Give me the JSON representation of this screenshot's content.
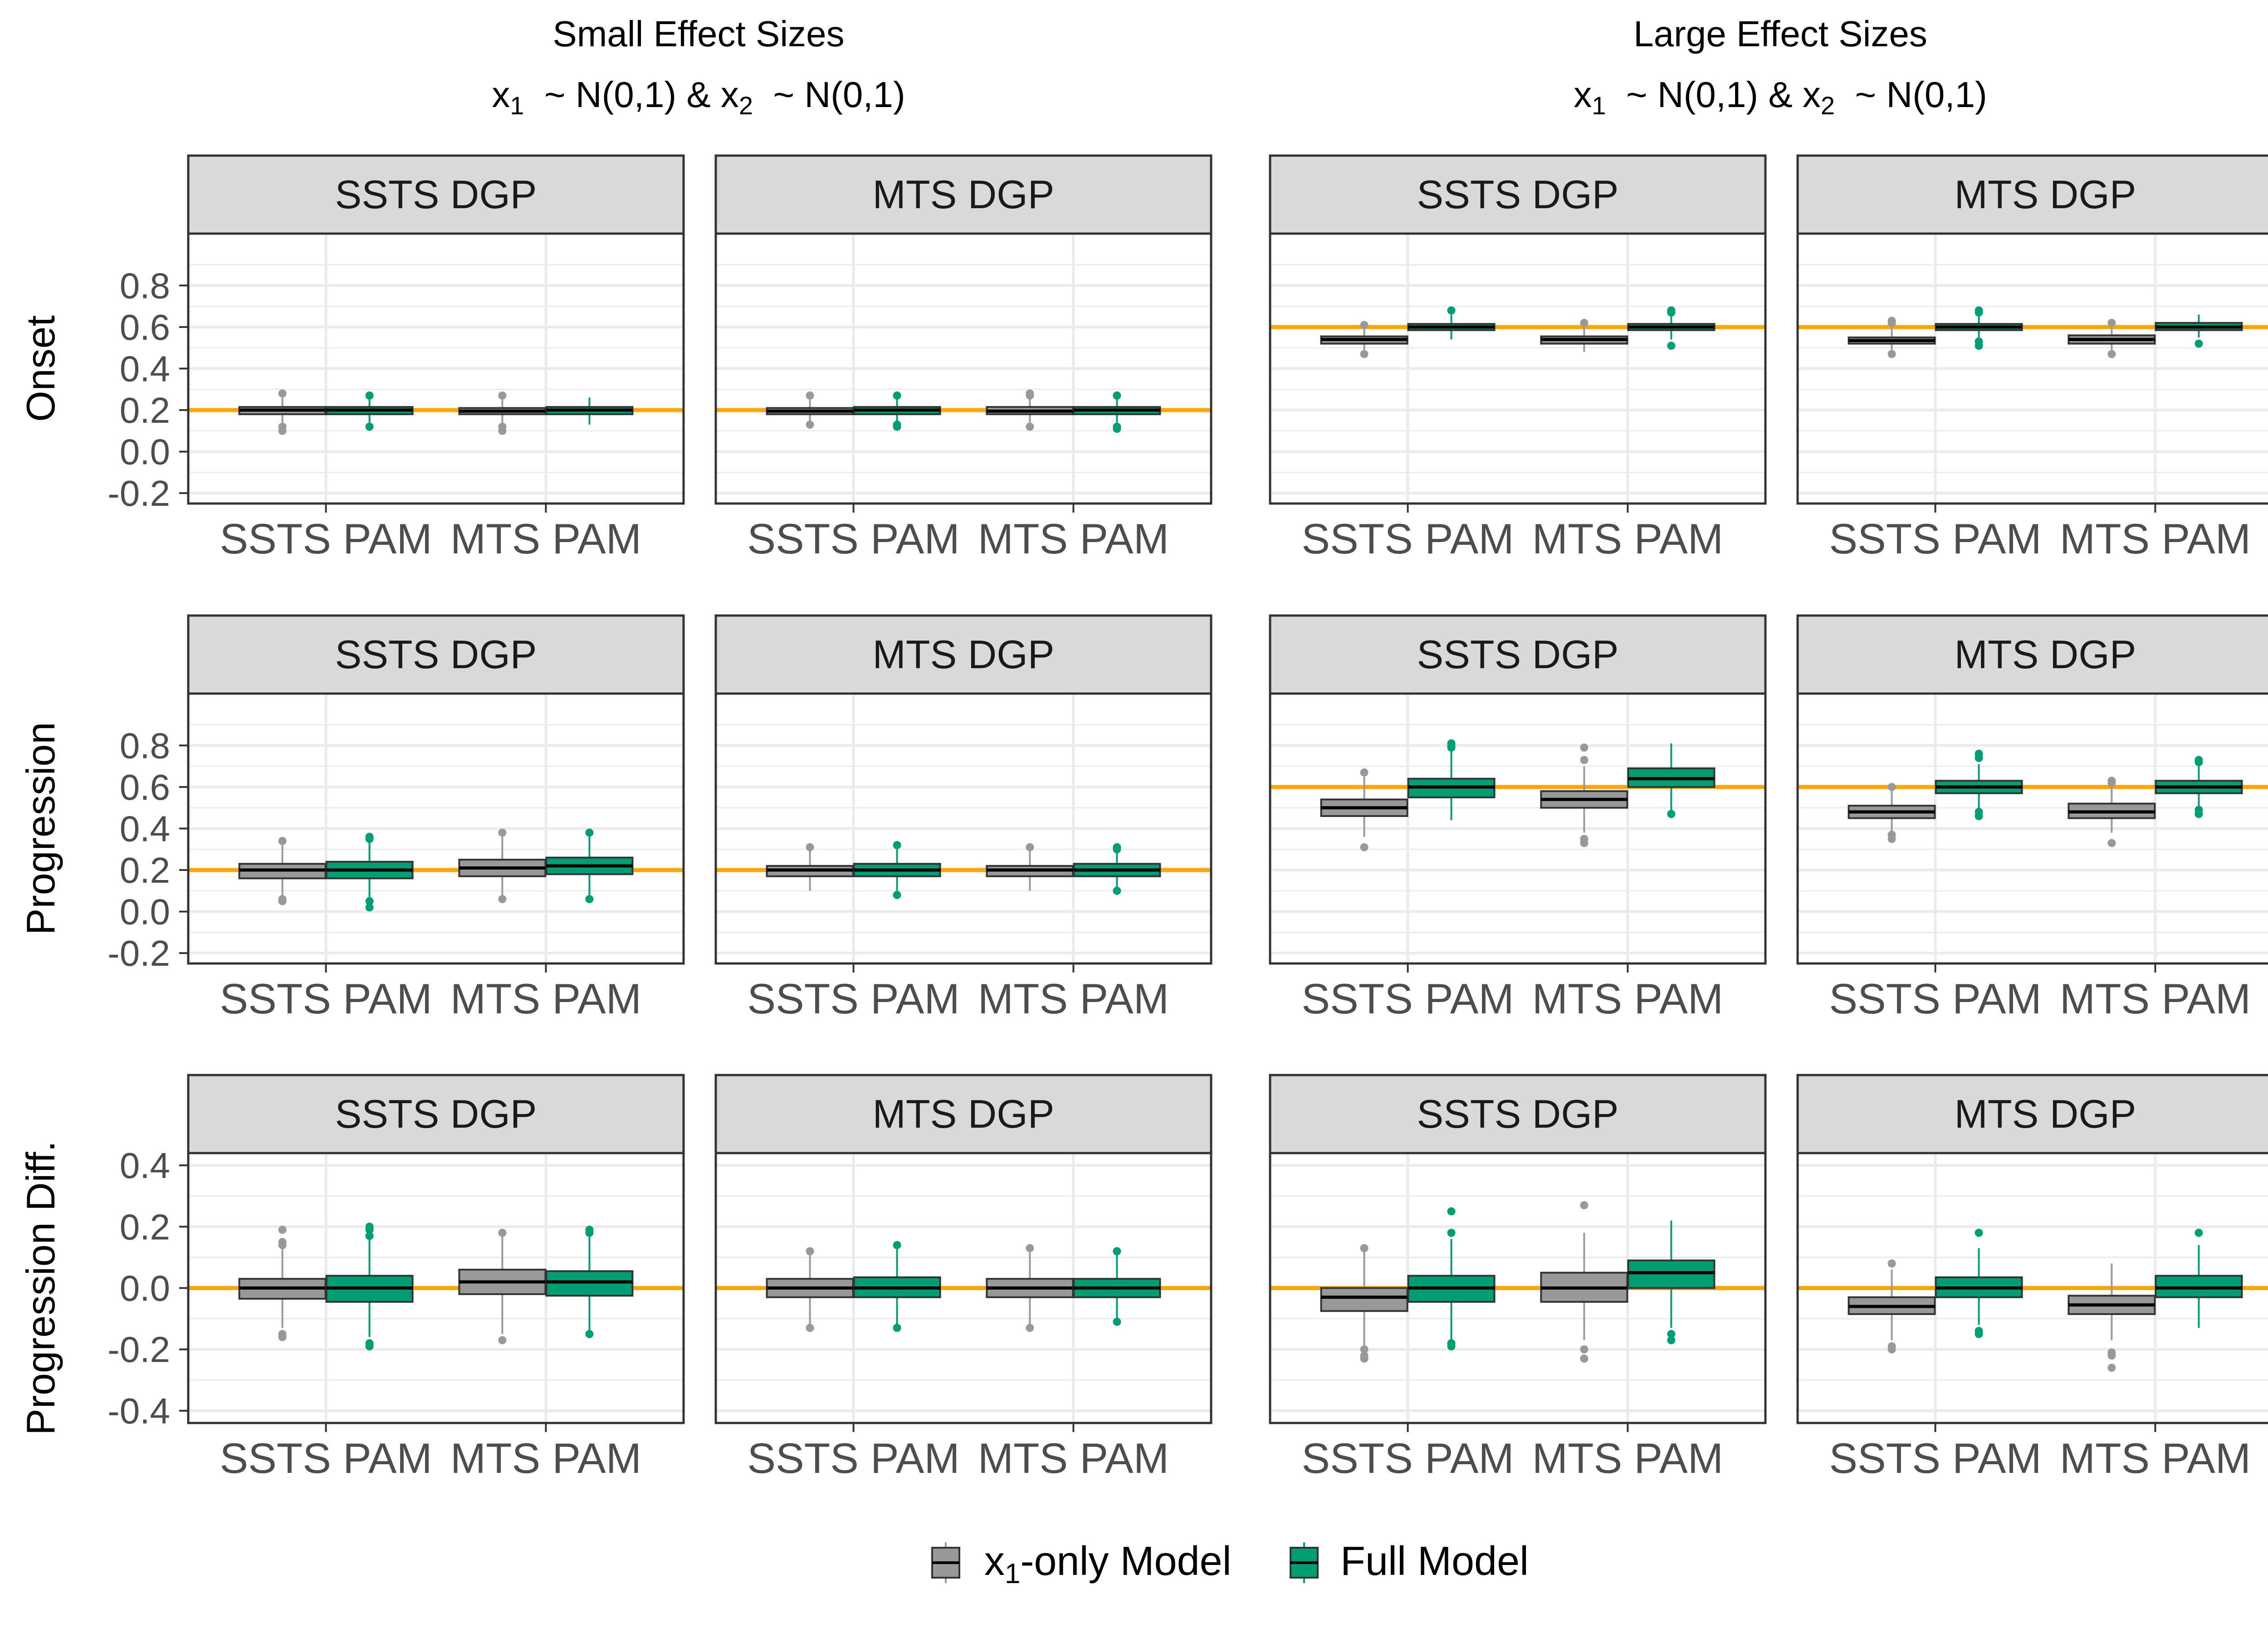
{
  "figure": {
    "col_titles": [
      {
        "line1": "Small Effect Sizes",
        "line2": {
          "v1": "x",
          "s1": "1",
          "t1": "  ~ N(0,1) & ",
          "v2": "x",
          "s2": "2",
          "t2": "  ~ N(0,1)"
        }
      },
      {
        "line1": "Large Effect Sizes",
        "line2": {
          "v1": "x",
          "s1": "1",
          "t1": "  ~ N(0,1) & ",
          "v2": "x",
          "s2": "2",
          "t2": "  ~ N(0,1)"
        }
      }
    ],
    "legend": {
      "items": [
        {
          "pre": "x",
          "sub": "1",
          "post": "-only Model",
          "color": "#999999"
        },
        {
          "pre": "Full Model",
          "sub": "",
          "post": "",
          "color": "#009E73"
        }
      ]
    },
    "colors": {
      "reference_line": "#FFA500",
      "strip_bg": "#D9D9D9",
      "grid": "#EBEBEB",
      "frame": "#333333",
      "median": "#000000",
      "text": "#4D4D4D",
      "title": "#000000"
    }
  },
  "chart_data": {
    "type": "box",
    "categories": [
      "SSTS PAM",
      "MTS PAM"
    ],
    "series_names": [
      "x1-only Model",
      "Full Model"
    ],
    "rows": [
      {
        "ylabel": "Onset",
        "ylim": [
          -0.25,
          1.05
        ],
        "ticks": [
          -0.2,
          0.0,
          0.2,
          0.4,
          0.6,
          0.8
        ],
        "tick_labels": [
          "-0.2",
          "0.0",
          "0.2",
          "0.4",
          "0.6",
          "0.8"
        ],
        "panels": [
          {
            "strip": "SSTS DGP",
            "ref": 0.2,
            "boxes": [
              {
                "q1": 0.18,
                "med": 0.2,
                "q3": 0.215,
                "lo": 0.14,
                "hi": 0.26,
                "out": [
                  0.1,
                  0.12,
                  0.28
                ]
              },
              {
                "q1": 0.18,
                "med": 0.2,
                "q3": 0.215,
                "lo": 0.14,
                "hi": 0.26,
                "out": [
                  0.12,
                  0.27
                ]
              },
              {
                "q1": 0.18,
                "med": 0.195,
                "q3": 0.21,
                "lo": 0.14,
                "hi": 0.25,
                "out": [
                  0.1,
                  0.12,
                  0.27
                ]
              },
              {
                "q1": 0.18,
                "med": 0.2,
                "q3": 0.215,
                "lo": 0.13,
                "hi": 0.26,
                "out": []
              }
            ]
          },
          {
            "strip": "MTS DGP",
            "ref": 0.2,
            "boxes": [
              {
                "q1": 0.18,
                "med": 0.195,
                "q3": 0.21,
                "lo": 0.14,
                "hi": 0.25,
                "out": [
                  0.13,
                  0.27
                ]
              },
              {
                "q1": 0.18,
                "med": 0.2,
                "q3": 0.215,
                "lo": 0.14,
                "hi": 0.26,
                "out": [
                  0.12,
                  0.13,
                  0.27
                ]
              },
              {
                "q1": 0.18,
                "med": 0.195,
                "q3": 0.215,
                "lo": 0.14,
                "hi": 0.26,
                "out": [
                  0.12,
                  0.27,
                  0.28
                ]
              },
              {
                "q1": 0.18,
                "med": 0.2,
                "q3": 0.215,
                "lo": 0.14,
                "hi": 0.26,
                "out": [
                  0.11,
                  0.12,
                  0.27
                ]
              }
            ]
          },
          {
            "strip": "SSTS DGP",
            "ref": 0.6,
            "boxes": [
              {
                "q1": 0.52,
                "med": 0.54,
                "q3": 0.555,
                "lo": 0.49,
                "hi": 0.6,
                "out": [
                  0.47,
                  0.61
                ]
              },
              {
                "q1": 0.585,
                "med": 0.6,
                "q3": 0.615,
                "lo": 0.54,
                "hi": 0.66,
                "out": [
                  0.68
                ]
              },
              {
                "q1": 0.52,
                "med": 0.54,
                "q3": 0.555,
                "lo": 0.48,
                "hi": 0.6,
                "out": [
                  0.62
                ]
              },
              {
                "q1": 0.585,
                "med": 0.6,
                "q3": 0.615,
                "lo": 0.54,
                "hi": 0.66,
                "out": [
                  0.51,
                  0.67,
                  0.68
                ]
              }
            ]
          },
          {
            "strip": "MTS DGP",
            "ref": 0.6,
            "boxes": [
              {
                "q1": 0.52,
                "med": 0.535,
                "q3": 0.55,
                "lo": 0.49,
                "hi": 0.6,
                "out": [
                  0.47,
                  0.62,
                  0.63
                ]
              },
              {
                "q1": 0.585,
                "med": 0.6,
                "q3": 0.615,
                "lo": 0.54,
                "hi": 0.66,
                "out": [
                  0.51,
                  0.53,
                  0.67,
                  0.68
                ]
              },
              {
                "q1": 0.52,
                "med": 0.54,
                "q3": 0.56,
                "lo": 0.49,
                "hi": 0.6,
                "out": [
                  0.47,
                  0.62
                ]
              },
              {
                "q1": 0.585,
                "med": 0.6,
                "q3": 0.62,
                "lo": 0.55,
                "hi": 0.66,
                "out": [
                  0.52
                ]
              }
            ]
          }
        ]
      },
      {
        "ylabel": "Progression",
        "ylim": [
          -0.25,
          1.05
        ],
        "ticks": [
          -0.2,
          0.0,
          0.2,
          0.4,
          0.6,
          0.8
        ],
        "tick_labels": [
          "-0.2",
          "0.0",
          "0.2",
          "0.4",
          "0.6",
          "0.8"
        ],
        "panels": [
          {
            "strip": "SSTS DGP",
            "ref": 0.2,
            "boxes": [
              {
                "q1": 0.16,
                "med": 0.2,
                "q3": 0.23,
                "lo": 0.07,
                "hi": 0.33,
                "out": [
                  0.05,
                  0.06,
                  0.34
                ]
              },
              {
                "q1": 0.16,
                "med": 0.2,
                "q3": 0.24,
                "lo": 0.06,
                "hi": 0.34,
                "out": [
                  0.02,
                  0.05,
                  0.35,
                  0.36
                ]
              },
              {
                "q1": 0.17,
                "med": 0.21,
                "q3": 0.25,
                "lo": 0.07,
                "hi": 0.36,
                "out": [
                  0.06,
                  0.38
                ]
              },
              {
                "q1": 0.18,
                "med": 0.22,
                "q3": 0.26,
                "lo": 0.08,
                "hi": 0.36,
                "out": [
                  0.06,
                  0.38
                ]
              }
            ]
          },
          {
            "strip": "MTS DGP",
            "ref": 0.2,
            "boxes": [
              {
                "q1": 0.17,
                "med": 0.2,
                "q3": 0.22,
                "lo": 0.1,
                "hi": 0.3,
                "out": [
                  0.31
                ]
              },
              {
                "q1": 0.17,
                "med": 0.2,
                "q3": 0.23,
                "lo": 0.1,
                "hi": 0.3,
                "out": [
                  0.08,
                  0.32
                ]
              },
              {
                "q1": 0.17,
                "med": 0.2,
                "q3": 0.22,
                "lo": 0.1,
                "hi": 0.3,
                "out": [
                  0.31
                ]
              },
              {
                "q1": 0.17,
                "med": 0.2,
                "q3": 0.23,
                "lo": 0.11,
                "hi": 0.29,
                "out": [
                  0.1,
                  0.3,
                  0.31
                ]
              }
            ]
          },
          {
            "strip": "SSTS DGP",
            "ref": 0.6,
            "boxes": [
              {
                "q1": 0.46,
                "med": 0.5,
                "q3": 0.54,
                "lo": 0.36,
                "hi": 0.65,
                "out": [
                  0.31,
                  0.67
                ]
              },
              {
                "q1": 0.55,
                "med": 0.6,
                "q3": 0.64,
                "lo": 0.44,
                "hi": 0.77,
                "out": [
                  0.79,
                  0.8,
                  0.81
                ]
              },
              {
                "q1": 0.5,
                "med": 0.54,
                "q3": 0.58,
                "lo": 0.38,
                "hi": 0.7,
                "out": [
                  0.33,
                  0.35,
                  0.73,
                  0.79
                ]
              },
              {
                "q1": 0.6,
                "med": 0.64,
                "q3": 0.69,
                "lo": 0.48,
                "hi": 0.81,
                "out": [
                  0.47
                ]
              }
            ]
          },
          {
            "strip": "MTS DGP",
            "ref": 0.6,
            "boxes": [
              {
                "q1": 0.45,
                "med": 0.48,
                "q3": 0.51,
                "lo": 0.38,
                "hi": 0.58,
                "out": [
                  0.35,
                  0.37,
                  0.6
                ]
              },
              {
                "q1": 0.57,
                "med": 0.6,
                "q3": 0.63,
                "lo": 0.49,
                "hi": 0.71,
                "out": [
                  0.46,
                  0.48,
                  0.74,
                  0.76
                ]
              },
              {
                "q1": 0.45,
                "med": 0.48,
                "q3": 0.52,
                "lo": 0.38,
                "hi": 0.6,
                "out": [
                  0.33,
                  0.62,
                  0.63
                ]
              },
              {
                "q1": 0.57,
                "med": 0.6,
                "q3": 0.63,
                "lo": 0.49,
                "hi": 0.71,
                "out": [
                  0.47,
                  0.49,
                  0.72,
                  0.73
                ]
              }
            ]
          }
        ]
      },
      {
        "ylabel": "Progression Diff.",
        "ylim": [
          -0.44,
          0.44
        ],
        "ticks": [
          -0.4,
          -0.2,
          0.0,
          0.2,
          0.4
        ],
        "tick_labels": [
          "-0.4",
          "-0.2",
          "0.0",
          "0.2",
          "0.4"
        ],
        "panels": [
          {
            "strip": "SSTS DGP",
            "ref": 0.0,
            "boxes": [
              {
                "q1": -0.035,
                "med": 0.0,
                "q3": 0.03,
                "lo": -0.13,
                "hi": 0.13,
                "out": [
                  -0.16,
                  -0.15,
                  0.14,
                  0.15,
                  0.19
                ]
              },
              {
                "q1": -0.045,
                "med": 0.0,
                "q3": 0.04,
                "lo": -0.16,
                "hi": 0.16,
                "out": [
                  -0.19,
                  -0.18,
                  0.17,
                  0.19,
                  0.2
                ]
              },
              {
                "q1": -0.02,
                "med": 0.02,
                "q3": 0.06,
                "lo": -0.15,
                "hi": 0.17,
                "out": [
                  -0.17,
                  0.18
                ]
              },
              {
                "q1": -0.025,
                "med": 0.02,
                "q3": 0.055,
                "lo": -0.14,
                "hi": 0.17,
                "out": [
                  -0.15,
                  0.18,
                  0.19
                ]
              }
            ]
          },
          {
            "strip": "MTS DGP",
            "ref": 0.0,
            "boxes": [
              {
                "q1": -0.03,
                "med": 0.0,
                "q3": 0.03,
                "lo": -0.12,
                "hi": 0.11,
                "out": [
                  -0.13,
                  0.12
                ]
              },
              {
                "q1": -0.03,
                "med": 0.0,
                "q3": 0.035,
                "lo": -0.12,
                "hi": 0.13,
                "out": [
                  -0.13,
                  0.14
                ]
              },
              {
                "q1": -0.03,
                "med": 0.0,
                "q3": 0.03,
                "lo": -0.12,
                "hi": 0.12,
                "out": [
                  -0.13,
                  0.13
                ]
              },
              {
                "q1": -0.03,
                "med": 0.0,
                "q3": 0.03,
                "lo": -0.1,
                "hi": 0.11,
                "out": [
                  -0.11,
                  0.12
                ]
              }
            ]
          },
          {
            "strip": "SSTS DGP",
            "ref": 0.0,
            "boxes": [
              {
                "q1": -0.075,
                "med": -0.03,
                "q3": 0.0,
                "lo": -0.19,
                "hi": 0.12,
                "out": [
                  -0.23,
                  -0.22,
                  -0.2,
                  0.13
                ]
              },
              {
                "q1": -0.045,
                "med": 0.0,
                "q3": 0.04,
                "lo": -0.17,
                "hi": 0.16,
                "out": [
                  -0.19,
                  -0.18,
                  0.18,
                  0.25
                ]
              },
              {
                "q1": -0.045,
                "med": 0.0,
                "q3": 0.05,
                "lo": -0.17,
                "hi": 0.18,
                "out": [
                  -0.23,
                  -0.2,
                  0.27
                ]
              },
              {
                "q1": 0.0,
                "med": 0.05,
                "q3": 0.09,
                "lo": -0.13,
                "hi": 0.22,
                "out": [
                  -0.17,
                  -0.15
                ]
              }
            ]
          },
          {
            "strip": "MTS DGP",
            "ref": 0.0,
            "boxes": [
              {
                "q1": -0.085,
                "med": -0.06,
                "q3": -0.03,
                "lo": -0.17,
                "hi": 0.06,
                "out": [
                  -0.2,
                  -0.19,
                  0.08
                ]
              },
              {
                "q1": -0.03,
                "med": 0.0,
                "q3": 0.035,
                "lo": -0.12,
                "hi": 0.13,
                "out": [
                  -0.15,
                  -0.14,
                  0.18
                ]
              },
              {
                "q1": -0.085,
                "med": -0.055,
                "q3": -0.025,
                "lo": -0.17,
                "hi": 0.08,
                "out": [
                  -0.26,
                  -0.22,
                  -0.21
                ]
              },
              {
                "q1": -0.03,
                "med": 0.0,
                "q3": 0.04,
                "lo": -0.13,
                "hi": 0.14,
                "out": [
                  0.18
                ]
              }
            ]
          }
        ]
      }
    ]
  }
}
